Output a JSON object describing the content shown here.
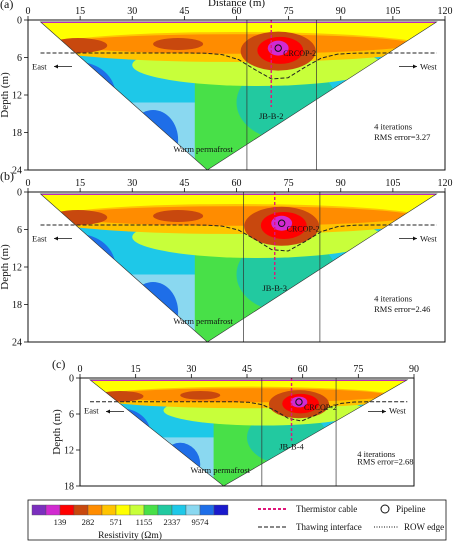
{
  "chart_data": [
    {
      "type": "heatmap",
      "panel_label": "(a)",
      "xlabel": "Distance (m)",
      "ylabel": "Depth (m)",
      "xlim": [
        0,
        120
      ],
      "ylim": [
        24,
        0
      ],
      "x_ticks": [
        0,
        15,
        30,
        45,
        60,
        75,
        90,
        105,
        120
      ],
      "y_ticks": [
        0,
        6,
        12,
        18,
        24
      ],
      "annotations": {
        "left_direction": "East",
        "right_direction": "West",
        "permafrost": "Warm permafrost",
        "borehole": "JB-B-2",
        "pipeline": "CRCOP-2",
        "inversion_iterations": "4 iterations",
        "rms_error": "RMS error=3.27"
      },
      "thermistor_cable_x": 70,
      "row_edge_x": [
        63,
        83
      ],
      "pipeline_x": 72,
      "pipeline_depth": 4.5
    },
    {
      "type": "heatmap",
      "panel_label": "(b)",
      "ylabel": "Depth (m)",
      "xlim": [
        0,
        120
      ],
      "ylim": [
        24,
        0
      ],
      "x_ticks": [
        0,
        15,
        30,
        45,
        60,
        75,
        90,
        105,
        120
      ],
      "y_ticks": [
        0,
        6,
        12,
        18,
        24
      ],
      "annotations": {
        "left_direction": "East",
        "right_direction": "West",
        "permafrost": "Warm permafrost",
        "borehole": "JB-B-3",
        "pipeline": "CRCOP-2",
        "inversion_iterations": "4 iterations",
        "rms_error": "RMS error=2.46"
      },
      "thermistor_cable_x": 71,
      "row_edge_x": [
        62,
        84
      ],
      "pipeline_x": 73,
      "pipeline_depth": 5
    },
    {
      "type": "heatmap",
      "panel_label": "(c)",
      "ylabel": "Depth (m)",
      "xlim": [
        0,
        90
      ],
      "ylim": [
        18,
        0
      ],
      "x_ticks": [
        0,
        15,
        30,
        45,
        60,
        75,
        90
      ],
      "y_ticks": [
        0,
        6,
        12,
        18
      ],
      "annotations": {
        "left_direction": "East",
        "right_direction": "West",
        "permafrost": "Warm permafrost",
        "borehole": "JB-B-4",
        "pipeline": "CRCOP-2",
        "inversion_iterations": "4 iterations",
        "rms_error": "RMS error=2.68"
      },
      "thermistor_cable_x": 57,
      "row_edge_x": [
        49,
        69
      ],
      "pipeline_x": 59,
      "pipeline_depth": 4
    }
  ],
  "colorbar": {
    "label": "Resistivity (Ωm)",
    "tick_labels": [
      "139",
      "282",
      "571",
      "1155",
      "2337",
      "9574"
    ],
    "colors": [
      "#7b2fbe",
      "#d12ad0",
      "#ff0000",
      "#c8480e",
      "#ff8c00",
      "#ffc400",
      "#ffff00",
      "#c8ff3a",
      "#48e048",
      "#22c9a0",
      "#1ec8e8",
      "#8ad8f0",
      "#1e6ee8",
      "#1a1acc"
    ]
  },
  "legend": {
    "thermistor_cable": "Thermistor cable",
    "pipeline": "Pipeline",
    "thawing_interface": "Thawing interface",
    "row_edge": "ROW edge"
  }
}
